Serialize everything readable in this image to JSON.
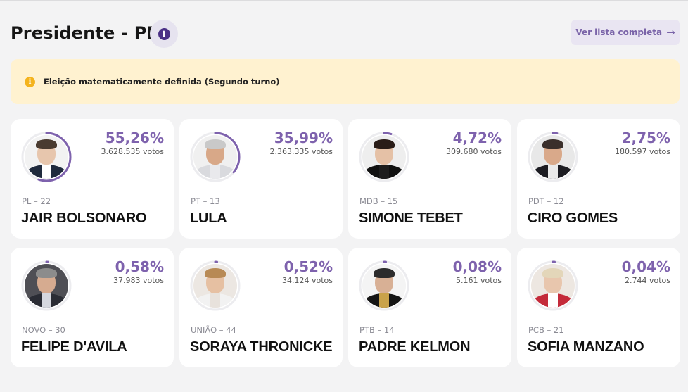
{
  "header": {
    "title": "Presidente - PR",
    "info_icon": "info-icon",
    "list_button": "Ver lista completa",
    "arrow_icon": "arrow-right-icon"
  },
  "alert": {
    "text": "Eleição matematicamente definida (Segundo turno)",
    "icon": "warning-icon",
    "color": "#fff2d0"
  },
  "accent_color": "#7e62ad",
  "candidates": [
    {
      "percent_text": "55,26%",
      "percent": 55.26,
      "votes": "3.628.535 votos",
      "party": "PL – 22",
      "name": "JAIR BOLSONARO",
      "photo": {
        "bg": "#f2f2f2",
        "skin": "#e7c6ad",
        "hair": "#4a3b30",
        "body": "#1f2a3d",
        "shirt": "#ffffff"
      }
    },
    {
      "percent_text": "35,99%",
      "percent": 35.99,
      "votes": "2.363.335 votos",
      "party": "PT – 13",
      "name": "LULA",
      "photo": {
        "bg": "#f0f0f0",
        "skin": "#d8a888",
        "hair": "#c9c9c9",
        "body": "#d9dade",
        "shirt": "#e9e9ec"
      }
    },
    {
      "percent_text": "4,72%",
      "percent": 4.72,
      "votes": "309.680 votos",
      "party": "MDB – 15",
      "name": "SIMONE TEBET",
      "photo": {
        "bg": "#eeeeee",
        "skin": "#e5c1a6",
        "hair": "#2a1d18",
        "body": "#111111",
        "shirt": "#1d1d1d"
      }
    },
    {
      "percent_text": "2,75%",
      "percent": 2.75,
      "votes": "180.597 votos",
      "party": "PDT – 12",
      "name": "CIRO GOMES",
      "photo": {
        "bg": "#e8e8e8",
        "skin": "#d9a98a",
        "hair": "#3a2f2b",
        "body": "#1c1c22",
        "shirt": "#eaeaea"
      }
    },
    {
      "percent_text": "0,58%",
      "percent": 0.58,
      "votes": "37.983 votos",
      "party": "NOVO – 30",
      "name": "FELIPE D'AVILA",
      "photo": {
        "bg": "#4f4f55",
        "skin": "#d6ab90",
        "hair": "#8c8c8c",
        "body": "#2a2c34",
        "shirt": "#d5d7de"
      }
    },
    {
      "percent_text": "0,52%",
      "percent": 0.52,
      "votes": "34.124 votos",
      "party": "UNIÃO – 44",
      "name": "SORAYA THRONICKE",
      "photo": {
        "bg": "#ece7e2",
        "skin": "#e6c0a2",
        "hair": "#b88a55",
        "body": "#f2f2f2",
        "shirt": "#e8e2dc"
      }
    },
    {
      "percent_text": "0,08%",
      "percent": 0.08,
      "votes": "5.161 votos",
      "party": "PTB – 14",
      "name": "PADRE KELMON",
      "photo": {
        "bg": "#f4f4f4",
        "skin": "#d8b095",
        "hair": "#2c2c2c",
        "body": "#151515",
        "shirt": "#c9a24a"
      }
    },
    {
      "percent_text": "0,04%",
      "percent": 0.04,
      "votes": "2.744 votos",
      "party": "PCB – 21",
      "name": "SOFIA MANZANO",
      "photo": {
        "bg": "#ede7e1",
        "skin": "#e8c6ad",
        "hair": "#e3d6b9",
        "body": "#c42a3a",
        "shirt": "#ffffff"
      }
    }
  ]
}
